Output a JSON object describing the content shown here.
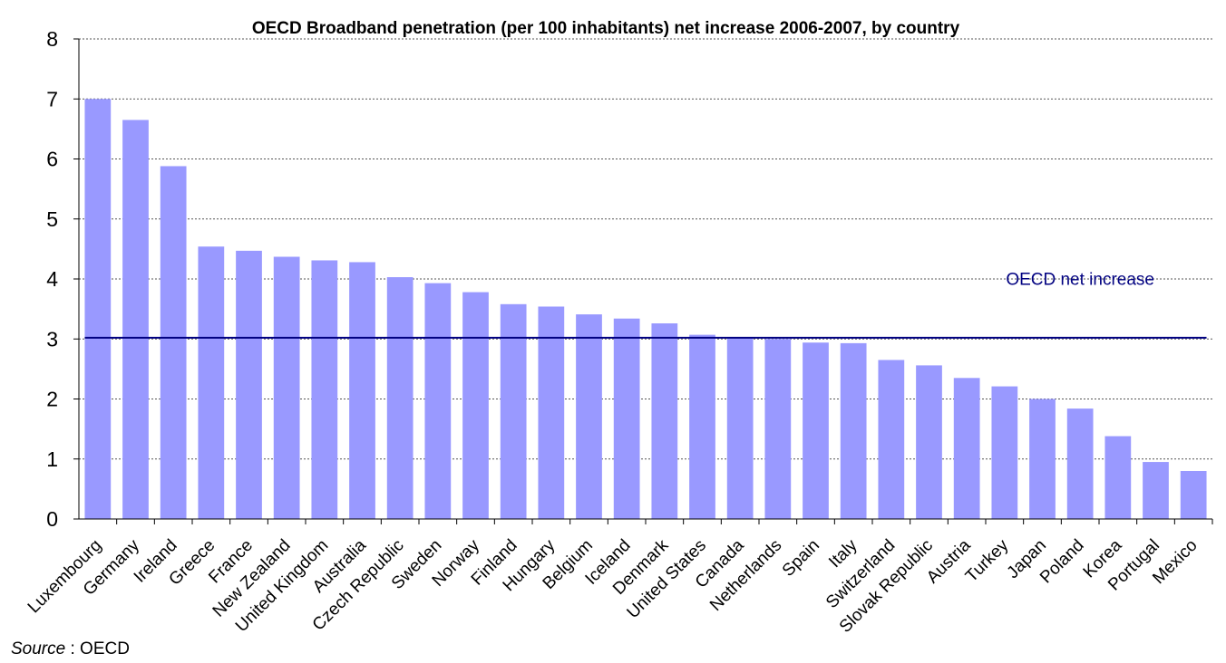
{
  "chart_data": {
    "type": "bar",
    "title": "OECD Broadband penetration (per 100 inhabitants) net increase 2006-2007, by country",
    "xlabel": "",
    "ylabel": "",
    "ylim": [
      0,
      8
    ],
    "yticks": [
      0,
      1,
      2,
      3,
      4,
      5,
      6,
      7,
      8
    ],
    "grid": true,
    "categories": [
      "Luxembourg",
      "Germany",
      "Ireland",
      "Greece",
      "France",
      "New Zealand",
      "United Kingdom",
      "Australia",
      "Czech Republic",
      "Sweden",
      "Norway",
      "Finland",
      "Hungary",
      "Belgium",
      "Iceland",
      "Denmark",
      "United States",
      "Canada",
      "Netherlands",
      "Spain",
      "Italy",
      "Switzerland",
      "Slovak Republic",
      "Austria",
      "Turkey",
      "Japan",
      "Poland",
      "Korea",
      "Portugal",
      "Mexico"
    ],
    "values": [
      7.0,
      6.65,
      5.88,
      4.54,
      4.47,
      4.37,
      4.31,
      4.28,
      4.03,
      3.93,
      3.78,
      3.58,
      3.54,
      3.41,
      3.34,
      3.26,
      3.07,
      3.02,
      3.0,
      2.94,
      2.93,
      2.65,
      2.56,
      2.35,
      2.21,
      2.0,
      1.84,
      1.38,
      0.95,
      0.8
    ],
    "bar_color": "#9999ff",
    "reference_line": {
      "label": "OECD net increase",
      "value": 3.02,
      "color": "#000080"
    }
  },
  "source": {
    "label": "Source",
    "separator": " : ",
    "value": "OECD"
  }
}
